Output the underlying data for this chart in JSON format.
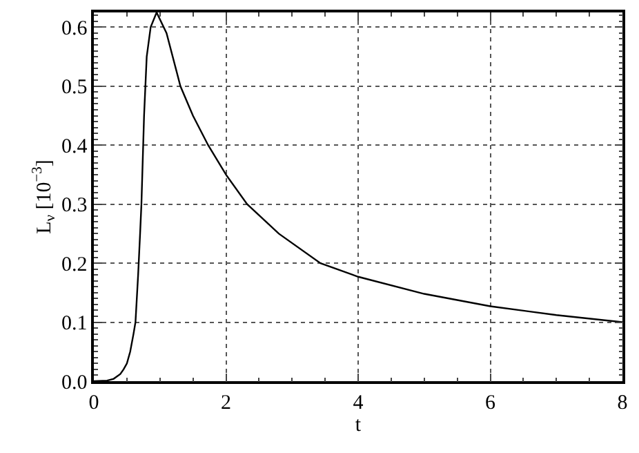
{
  "chart_data": {
    "type": "line",
    "xlabel": "t",
    "ylabel": "L$_{ν}$ [10$^{−3}$]",
    "x": [
      0,
      0.2,
      0.3,
      0.4,
      0.45,
      0.5,
      0.55,
      0.6,
      0.63,
      0.67,
      0.7,
      0.72,
      0.76,
      0.8,
      0.86,
      0.95,
      1.1,
      1.31,
      1.5,
      1.73,
      2,
      2.32,
      2.8,
      3.43,
      4,
      5,
      6,
      7,
      8
    ],
    "series": [
      {
        "color": "#000000",
        "values": [
          0,
          0.001,
          0.004,
          0.012,
          0.02,
          0.03,
          0.05,
          0.08,
          0.1,
          0.18,
          0.25,
          0.3,
          0.45,
          0.55,
          0.6,
          0.625,
          0.59,
          0.5,
          0.45,
          0.4,
          0.35,
          0.3,
          0.25,
          0.2,
          0.177,
          0.148,
          0.127,
          0.112,
          0.1
        ]
      }
    ],
    "xlim": [
      0,
      8
    ],
    "ylim": [
      0,
      0.625
    ],
    "xticks": [
      0,
      2,
      4,
      6,
      8
    ],
    "yticks": [
      {
        "value": 0,
        "label": "0.0"
      },
      0.1,
      0.2,
      0.3,
      0.4,
      0.5,
      0.6
    ],
    "grid": true,
    "line_style": "solid",
    "marker": "none"
  }
}
